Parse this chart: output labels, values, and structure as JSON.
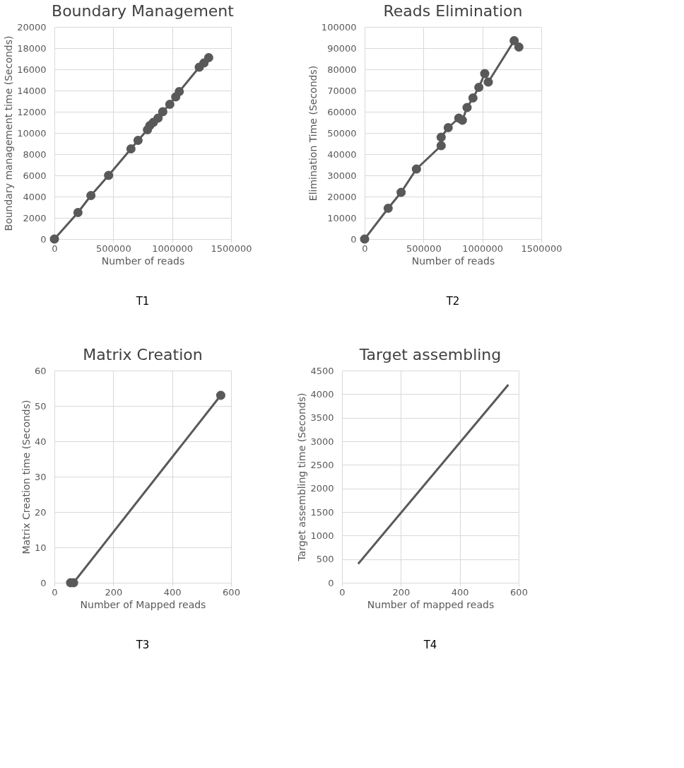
{
  "chart_data": [
    {
      "type": "line",
      "title": "Boundary Management",
      "xlabel": "Number of reads",
      "ylabel": "Boundary management time (Seconds)",
      "annotations": [
        "T1"
      ],
      "marker": "circle",
      "grid": true,
      "xlim": [
        0,
        1500000
      ],
      "xticks": [
        0,
        500000,
        1000000,
        1500000
      ],
      "ylim": [
        0,
        20000
      ],
      "yticks": [
        0,
        2000,
        4000,
        6000,
        8000,
        10000,
        12000,
        14000,
        16000,
        18000,
        20000
      ],
      "series": [
        {
          "color": "#595959",
          "x": [
            0,
            200000,
            310000,
            460000,
            650000,
            710000,
            790000,
            810000,
            840000,
            880000,
            920000,
            980000,
            1030000,
            1060000,
            1230000,
            1270000,
            1310000
          ],
          "values": [
            0,
            2500,
            4100,
            6000,
            8500,
            9300,
            10300,
            10700,
            11000,
            11400,
            12000,
            12700,
            13400,
            13900,
            16200,
            16600,
            17100
          ]
        }
      ]
    },
    {
      "type": "line",
      "title": "Reads Elimination",
      "xlabel": "Number of reads",
      "ylabel": "Elimination Time (Seconds)",
      "annotations": [
        "T2"
      ],
      "marker": "circle",
      "grid": true,
      "xlim": [
        0,
        1500000
      ],
      "xticks": [
        0,
        500000,
        1000000,
        1500000
      ],
      "ylim": [
        0,
        100000
      ],
      "yticks": [
        0,
        10000,
        20000,
        30000,
        40000,
        50000,
        60000,
        70000,
        80000,
        90000,
        100000
      ],
      "series": [
        {
          "color": "#595959",
          "x": [
            0,
            200000,
            310000,
            440000,
            650000,
            650000,
            710000,
            800000,
            830000,
            870000,
            920000,
            970000,
            1020000,
            1050000,
            1270000,
            1310000
          ],
          "values": [
            0,
            14500,
            22000,
            33000,
            44000,
            48000,
            52500,
            57000,
            56000,
            62000,
            66500,
            71500,
            78000,
            74000,
            93500,
            90500
          ]
        }
      ]
    },
    {
      "type": "line",
      "title": "Matrix Creation",
      "xlabel": "Number of Mapped reads",
      "ylabel": "Matrix Creation time (Seconds)",
      "annotations": [
        "T3"
      ],
      "marker": "circle",
      "grid": true,
      "xlim": [
        0,
        600
      ],
      "xticks": [
        0,
        200,
        400,
        600
      ],
      "ylim": [
        0,
        60
      ],
      "yticks": [
        0,
        10,
        20,
        30,
        40,
        50,
        60
      ],
      "series": [
        {
          "color": "#595959",
          "x": [
            55,
            65,
            565
          ],
          "values": [
            0,
            0,
            53
          ]
        }
      ]
    },
    {
      "type": "line",
      "title": "Target assembling",
      "xlabel": "Number of mapped reads",
      "ylabel": "Target assembling time (Seconds)",
      "annotations": [
        "T4"
      ],
      "marker": "none",
      "grid": true,
      "xlim": [
        0,
        600
      ],
      "xticks": [
        0,
        200,
        400,
        600
      ],
      "ylim": [
        0,
        4500
      ],
      "yticks": [
        0,
        500,
        1000,
        1500,
        2000,
        2500,
        3000,
        3500,
        4000,
        4500
      ],
      "series": [
        {
          "color": "#595959",
          "x": [
            55,
            565
          ],
          "values": [
            400,
            4200
          ]
        }
      ]
    }
  ]
}
